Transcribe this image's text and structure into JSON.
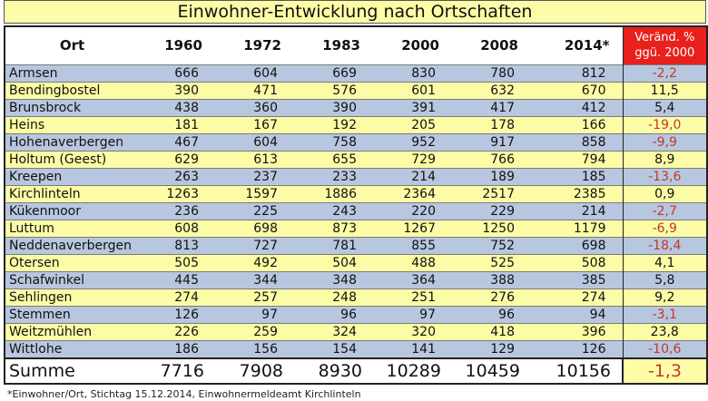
{
  "title": "Einwohner-Entwicklung nach Ortschaften",
  "headers": {
    "ort": "Ort",
    "y1960": "1960",
    "y1972": "1972",
    "y1983": "1983",
    "y2000": "2000",
    "y2008": "2008",
    "y2014": "2014*",
    "change": "Veränd. % ggü. 2000"
  },
  "rows": [
    {
      "ort": "Armsen",
      "v1960": "666",
      "v1972": "604",
      "v1983": "669",
      "v2000": "830",
      "v2008": "780",
      "v2014": "812",
      "change": "-2,2"
    },
    {
      "ort": "Bendingbostel",
      "v1960": "390",
      "v1972": "471",
      "v1983": "576",
      "v2000": "601",
      "v2008": "632",
      "v2014": "670",
      "change": "11,5"
    },
    {
      "ort": "Brunsbrock",
      "v1960": "438",
      "v1972": "360",
      "v1983": "390",
      "v2000": "391",
      "v2008": "417",
      "v2014": "412",
      "change": "5,4"
    },
    {
      "ort": "Heins",
      "v1960": "181",
      "v1972": "167",
      "v1983": "192",
      "v2000": "205",
      "v2008": "178",
      "v2014": "166",
      "change": "-19,0"
    },
    {
      "ort": "Hohenaverbergen",
      "v1960": "467",
      "v1972": "604",
      "v1983": "758",
      "v2000": "952",
      "v2008": "917",
      "v2014": "858",
      "change": "-9,9"
    },
    {
      "ort": "Holtum (Geest)",
      "v1960": "629",
      "v1972": "613",
      "v1983": "655",
      "v2000": "729",
      "v2008": "766",
      "v2014": "794",
      "change": "8,9"
    },
    {
      "ort": "Kreepen",
      "v1960": "263",
      "v1972": "237",
      "v1983": "233",
      "v2000": "214",
      "v2008": "189",
      "v2014": "185",
      "change": "-13,6"
    },
    {
      "ort": "Kirchlinteln",
      "v1960": "1263",
      "v1972": "1597",
      "v1983": "1886",
      "v2000": "2364",
      "v2008": "2517",
      "v2014": "2385",
      "change": "0,9"
    },
    {
      "ort": "Kükenmoor",
      "v1960": "236",
      "v1972": "225",
      "v1983": "243",
      "v2000": "220",
      "v2008": "229",
      "v2014": "214",
      "change": "-2,7"
    },
    {
      "ort": "Luttum",
      "v1960": "608",
      "v1972": "698",
      "v1983": "873",
      "v2000": "1267",
      "v2008": "1250",
      "v2014": "1179",
      "change": "-6,9"
    },
    {
      "ort": "Neddenaverbergen",
      "v1960": "813",
      "v1972": "727",
      "v1983": "781",
      "v2000": "855",
      "v2008": "752",
      "v2014": "698",
      "change": "-18,4"
    },
    {
      "ort": "Otersen",
      "v1960": "505",
      "v1972": "492",
      "v1983": "504",
      "v2000": "488",
      "v2008": "525",
      "v2014": "508",
      "change": "4,1"
    },
    {
      "ort": "Schafwinkel",
      "v1960": "445",
      "v1972": "344",
      "v1983": "348",
      "v2000": "364",
      "v2008": "388",
      "v2014": "385",
      "change": "5,8"
    },
    {
      "ort": "Sehlingen",
      "v1960": "274",
      "v1972": "257",
      "v1983": "248",
      "v2000": "251",
      "v2008": "276",
      "v2014": "274",
      "change": "9,2"
    },
    {
      "ort": "Stemmen",
      "v1960": "126",
      "v1972": "97",
      "v1983": "96",
      "v2000": "97",
      "v2008": "96",
      "v2014": "94",
      "change": "-3,1"
    },
    {
      "ort": "Weitzmühlen",
      "v1960": "226",
      "v1972": "259",
      "v1983": "324",
      "v2000": "320",
      "v2008": "418",
      "v2014": "396",
      "change": "23,8"
    },
    {
      "ort": "Wittlohe",
      "v1960": "186",
      "v1972": "156",
      "v1983": "154",
      "v2000": "141",
      "v2008": "129",
      "v2014": "126",
      "change": "-10,6"
    }
  ],
  "sum": {
    "label": "Summe",
    "v1960": "7716",
    "v1972": "7908",
    "v1983": "8930",
    "v2000": "10289",
    "v2008": "10459",
    "v2014": "10156",
    "change": "-1,3"
  },
  "footnote": "*Einwohner/Ort, Stichtag 15.12.2014, Einwohnermeldeamt Kirchlinteln",
  "colors": {
    "title_bg": "#fffca8",
    "row_blue": "#b8c7e0",
    "row_yellow": "#fcfca6",
    "change_header_bg": "#e8211c",
    "negative": "#c0392b"
  }
}
